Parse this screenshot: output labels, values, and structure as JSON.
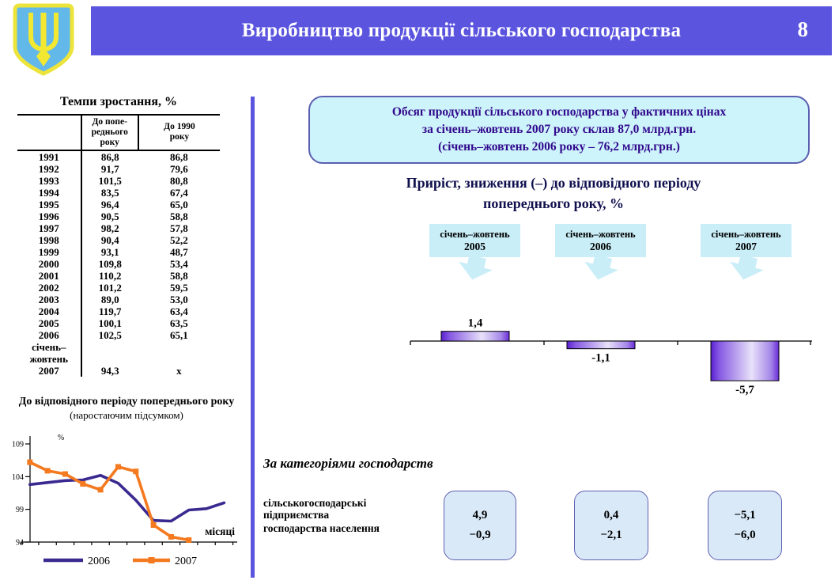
{
  "header": {
    "title": "Виробництво продукції сільського господарства",
    "page_number": "8",
    "emblem": "ukraine-coat-of-arms",
    "band_color": "#5b54df"
  },
  "growth_table": {
    "title": "Темпи зростання, %",
    "col_headers": [
      "",
      "До попе-\nреднього\nроку",
      "До 1990\nроку"
    ],
    "rows": [
      [
        "1991",
        "86,8",
        "86,8"
      ],
      [
        "1992",
        "91,7",
        "79,6"
      ],
      [
        "1993",
        "101,5",
        "80,8"
      ],
      [
        "1994",
        "83,5",
        "67,4"
      ],
      [
        "1995",
        "96,4",
        "65,0"
      ],
      [
        "1996",
        "90,5",
        "58,8"
      ],
      [
        "1997",
        "98,2",
        "57,8"
      ],
      [
        "1998",
        "90,4",
        "52,2"
      ],
      [
        "1999",
        "93,1",
        "48,7"
      ],
      [
        "2000",
        "109,8",
        "53,4"
      ],
      [
        "2001",
        "110,2",
        "58,8"
      ],
      [
        "2002",
        "101,2",
        "59,5"
      ],
      [
        "2003",
        "89,0",
        "53,0"
      ],
      [
        "2004",
        "119,7",
        "63,4"
      ],
      [
        "2005",
        "100,1",
        "63,5"
      ],
      [
        "2006",
        "102,5",
        "65,1"
      ],
      [
        "січень–\nжовтень\n2007",
        "94,3",
        "x"
      ]
    ]
  },
  "info_box": {
    "line1": "Обсяг продукції сільського господарства у фактичних цінах",
    "line2": "за січень–жовтень 2007 року склав 87,0 млрд.грн.",
    "line3": "(січень–жовтень 2006 року – 76,2 млрд.грн.)"
  },
  "growth_heading": {
    "line1": "Приріст, зниження (–) до відповідного періоду",
    "line2": "попереднього року, %"
  },
  "period_callouts": [
    {
      "period": "січень–жовтень",
      "year": "2005"
    },
    {
      "period": "січень–жовтень",
      "year": "2006"
    },
    {
      "period": "січень–жовтень",
      "year": "2007"
    }
  ],
  "categories_section": {
    "title": "За категоріями господарств",
    "row_label_1": "сільськогосподарські\nпідприємства",
    "row_label_2": "господарства населення",
    "boxes": [
      {
        "enterprises": "4,9",
        "households": "−0,9"
      },
      {
        "enterprises": "0,4",
        "households": "−2,1"
      },
      {
        "enterprises": "−5,1",
        "households": "−6,0"
      }
    ]
  },
  "chart_data": [
    {
      "type": "line",
      "title": "До відповідного періоду попереднього року",
      "subtitle": "(наростаючим підсумком)",
      "ylabel": "%",
      "xlabel": "місяці",
      "yticks": [
        94,
        99,
        104,
        109
      ],
      "ylim": [
        92.5,
        110
      ],
      "x_unit": "months 1-12, cumulative",
      "legend_position": "bottom",
      "series": [
        {
          "name": "2006",
          "color": "#3a2a90",
          "values": [
            102.8,
            103.1,
            103.4,
            103.5,
            104.2,
            103.0,
            100.4,
            97.3,
            97.2,
            98.9,
            99.1,
            100.0
          ]
        },
        {
          "name": "2007",
          "color": "#f4791f",
          "marker": "square",
          "values": [
            106.2,
            104.9,
            104.4,
            102.9,
            102.0,
            105.5,
            104.8,
            96.6,
            94.8,
            94.3
          ]
        }
      ]
    },
    {
      "type": "bar",
      "categories": [
        "січень–жовтень 2005",
        "січень–жовтень 2006",
        "січень–жовтень 2007"
      ],
      "values": [
        1.4,
        -1.1,
        -5.7
      ],
      "value_labels": [
        "1,4",
        "-1,1",
        "-5,7"
      ],
      "baseline": 0,
      "bar_gradient": [
        "#5a1fd0",
        "#e8e1fa",
        "#6a2cd8"
      ],
      "bar_border": "#000000"
    }
  ]
}
